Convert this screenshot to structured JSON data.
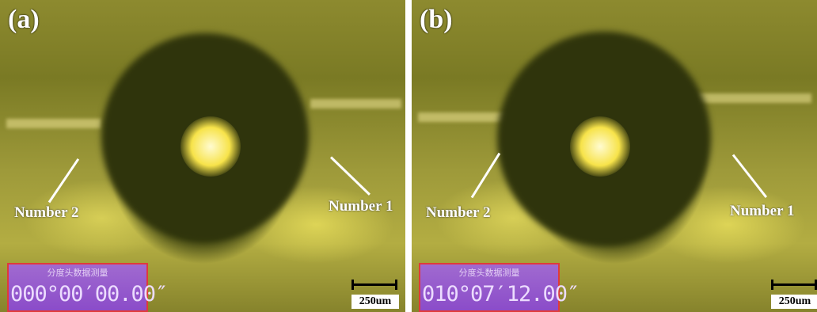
{
  "panels": [
    {
      "letter": "(a)",
      "label_left": "Number 2",
      "label_right": "Number 1",
      "readout_title": "分度头数据测量",
      "readout_value": "000°00′00.00″",
      "scale_label": "250um"
    },
    {
      "letter": "(b)",
      "label_left": "Number 2",
      "label_right": "Number 1",
      "readout_title": "分度头数据测量",
      "readout_value": "010°07′12.00″",
      "scale_label": "250um"
    }
  ],
  "colors": {
    "readout_background": "#8b4cc9",
    "readout_border": "#e03a3a",
    "background_tint": "#8d8a2f",
    "bright_spot": "#f7e34a"
  }
}
